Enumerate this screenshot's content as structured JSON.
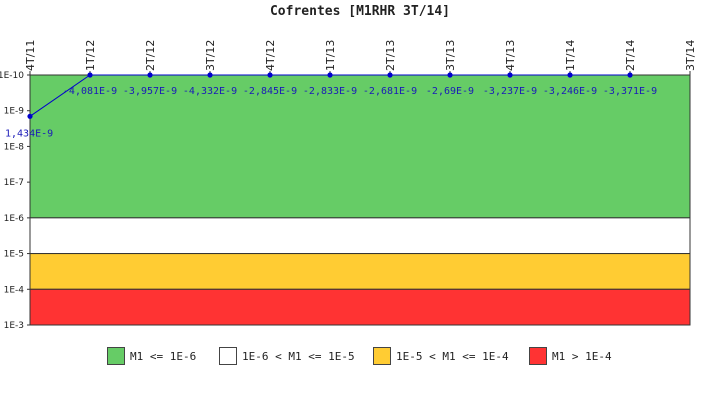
{
  "chart_data": {
    "type": "line",
    "title": "Cofrentes [M1RHR 3T/14]",
    "categories": [
      "4T/11",
      "1T/12",
      "2T/12",
      "3T/12",
      "4T/12",
      "1T/13",
      "2T/13",
      "3T/13",
      "4T/13",
      "1T/14",
      "2T/14",
      "3T/14"
    ],
    "values": [
      1.434e-09,
      -4.081e-09,
      -3.957e-09,
      -4.332e-09,
      -2.845e-09,
      -2.833e-09,
      -2.681e-09,
      -2.69e-09,
      -3.237e-09,
      -3.246e-09,
      -3.371e-09,
      null
    ],
    "data_labels": [
      "1,434E-9",
      "-4,081E-9",
      "-3,957E-9",
      "-4,332E-9",
      "-2,845E-9",
      "-2,833E-9",
      "-2,681E-9",
      "-2,69E-9",
      "-3,237E-9",
      "-3,246E-9",
      "-3,371E-9",
      ""
    ],
    "y_scale": "log",
    "y_ticks": [
      "1E-10",
      "1E-9",
      "1E-8",
      "1E-7",
      "1E-6",
      "1E-5",
      "1E-4",
      "1E-3"
    ],
    "ylim": [
      1e-10,
      0.001
    ],
    "y_reversed": true,
    "x_label_position": "top",
    "line_color": "#0000cc",
    "bands": [
      {
        "from": 1e-10,
        "to": 1e-06,
        "color": "#66cc66",
        "label": "M1 <= 1E-6"
      },
      {
        "from": 1e-06,
        "to": 1e-05,
        "color": "#ffffff",
        "label": "1E-6 < M1 <= 1E-5"
      },
      {
        "from": 1e-05,
        "to": 0.0001,
        "color": "#ffcc33",
        "label": "1E-5 < M1 <= 1E-4"
      },
      {
        "from": 0.0001,
        "to": 0.001,
        "color": "#ff3333",
        "label": "M1 > 1E-4"
      }
    ],
    "legend_position": "bottom"
  }
}
